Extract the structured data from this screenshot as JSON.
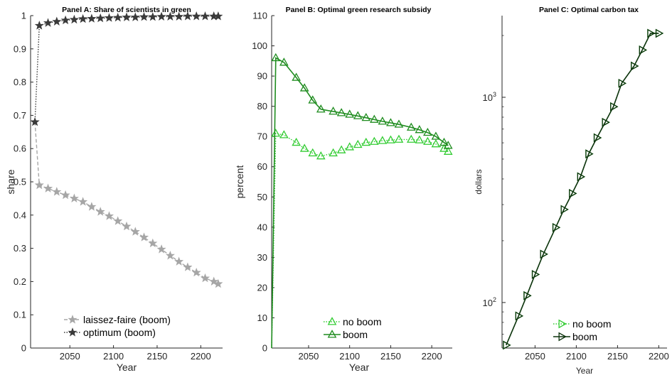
{
  "chart_data": [
    {
      "type": "line",
      "title": "Panel A: Share of scientists in green",
      "xlabel": "Year",
      "ylabel": "share",
      "xlim": [
        2005,
        2225
      ],
      "ylim": [
        0,
        1
      ],
      "xticks": [
        "2050",
        "2100",
        "2150",
        "2200"
      ],
      "yticks": [
        "0",
        "0.1",
        "0.2",
        "0.3",
        "0.4",
        "0.5",
        "0.6",
        "0.7",
        "0.8",
        "0.9",
        "1"
      ],
      "legend_position": "bottom-center",
      "series": [
        {
          "name": "laissez-faire (boom)",
          "color": "#a6a6a6",
          "line": "dashed",
          "marker": "star",
          "x": [
            2010,
            2015,
            2025,
            2035,
            2045,
            2055,
            2065,
            2075,
            2085,
            2095,
            2105,
            2115,
            2125,
            2135,
            2145,
            2155,
            2165,
            2175,
            2185,
            2195,
            2205,
            2215,
            2220
          ],
          "y": [
            0.68,
            0.49,
            0.48,
            0.47,
            0.46,
            0.45,
            0.44,
            0.425,
            0.41,
            0.397,
            0.382,
            0.366,
            0.35,
            0.333,
            0.315,
            0.297,
            0.278,
            0.26,
            0.243,
            0.227,
            0.21,
            0.2,
            0.193
          ]
        },
        {
          "name": "optimum (boom)",
          "color": "#3a3a3a",
          "line": "dotted",
          "marker": "star",
          "x": [
            2010,
            2015,
            2025,
            2035,
            2045,
            2055,
            2065,
            2075,
            2085,
            2095,
            2105,
            2115,
            2125,
            2135,
            2145,
            2155,
            2165,
            2175,
            2185,
            2195,
            2205,
            2215,
            2220
          ],
          "y": [
            0.68,
            0.97,
            0.978,
            0.982,
            0.986,
            0.988,
            0.99,
            0.991,
            0.992,
            0.993,
            0.994,
            0.995,
            0.995,
            0.996,
            0.996,
            0.997,
            0.997,
            0.997,
            0.998,
            0.998,
            0.998,
            0.998,
            0.998
          ]
        }
      ]
    },
    {
      "type": "line",
      "title": "Panel B: Optimal green research subsidy",
      "xlabel": "Year",
      "ylabel": "percent",
      "xlim": [
        2005,
        2225
      ],
      "ylim": [
        0,
        110
      ],
      "xticks": [
        "2050",
        "2100",
        "2150",
        "2200"
      ],
      "yticks": [
        "0",
        "10",
        "20",
        "30",
        "40",
        "50",
        "60",
        "70",
        "80",
        "90",
        "100",
        "110"
      ],
      "legend_position": "bottom-center",
      "series": [
        {
          "name": "no boom",
          "color": "#33cc33",
          "line": "dotted",
          "marker": "triangle-up",
          "x": [
            2005,
            2010,
            2020,
            2035,
            2045,
            2055,
            2065,
            2080,
            2090,
            2100,
            2110,
            2120,
            2130,
            2140,
            2150,
            2160,
            2175,
            2185,
            2195,
            2205,
            2215,
            2220
          ],
          "y": [
            0,
            71,
            70.5,
            68,
            66,
            64.5,
            63.5,
            64.5,
            65.5,
            66.5,
            67.3,
            68,
            68.3,
            68.6,
            68.8,
            69,
            69,
            68.8,
            68.3,
            67.5,
            66,
            65
          ]
        },
        {
          "name": "boom",
          "color": "#1f8c1f",
          "line": "solid",
          "marker": "triangle-up",
          "x": [
            2005,
            2010,
            2020,
            2035,
            2045,
            2055,
            2065,
            2080,
            2090,
            2100,
            2110,
            2120,
            2130,
            2140,
            2150,
            2160,
            2175,
            2185,
            2195,
            2205,
            2215,
            2220
          ],
          "y": [
            0,
            96,
            94.5,
            89.5,
            86,
            82,
            79,
            78.3,
            77.8,
            77.3,
            76.8,
            76.2,
            75.6,
            75,
            74.5,
            74,
            73,
            72.2,
            71.3,
            70,
            68,
            67
          ]
        }
      ]
    },
    {
      "type": "line",
      "title": "Panel C: Optimal carbon tax",
      "xlabel": "Year",
      "ylabel": "dollars",
      "xlim": [
        2010,
        2210
      ],
      "ylim": [
        60,
        2500
      ],
      "yscale": "log",
      "xticks": [
        "2050",
        "2100",
        "2150",
        "2200"
      ],
      "yticks": [
        "10^2",
        "10^3"
      ],
      "legend_position": "bottom-right",
      "series": [
        {
          "name": "no boom",
          "color": "#33cc33",
          "line": "dotted",
          "marker": "triangle-right",
          "x": [
            2015,
            2030,
            2040,
            2050,
            2060,
            2075,
            2085,
            2095,
            2105,
            2115,
            2125,
            2135,
            2145,
            2155,
            2170,
            2180,
            2190,
            2200
          ],
          "y": [
            62,
            86,
            108,
            137,
            172,
            232,
            284,
            340,
            410,
            530,
            635,
            755,
            900,
            1170,
            1420,
            1700,
            2050,
            2050
          ]
        },
        {
          "name": "boom",
          "color": "#0d330d",
          "line": "solid",
          "marker": "triangle-right",
          "x": [
            2015,
            2030,
            2040,
            2050,
            2060,
            2075,
            2085,
            2095,
            2105,
            2115,
            2125,
            2135,
            2145,
            2155,
            2170,
            2180,
            2190,
            2200
          ],
          "y": [
            62,
            86,
            108,
            137,
            172,
            232,
            284,
            340,
            410,
            530,
            635,
            755,
            900,
            1170,
            1420,
            1700,
            2050,
            2050
          ]
        }
      ]
    }
  ]
}
